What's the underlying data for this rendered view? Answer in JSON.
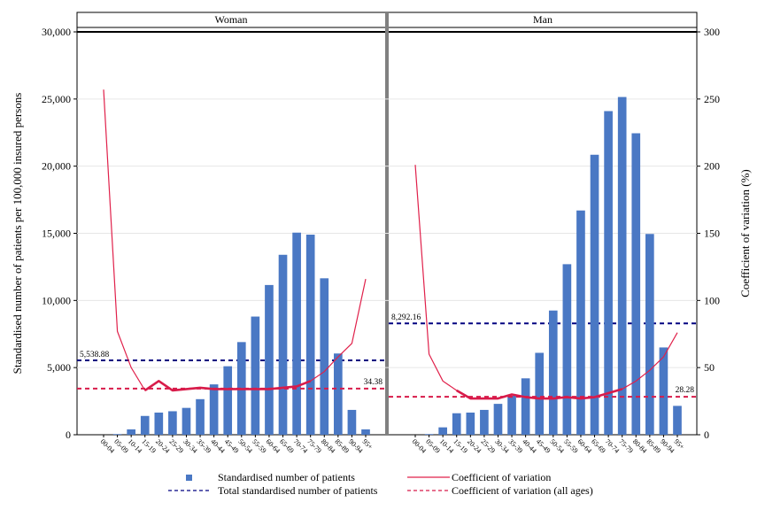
{
  "chart_data": {
    "type": "bar",
    "y_left_label": "Standardised number of patients per 100,000 insured persons",
    "y_right_label": "Coefficient of variation (%)",
    "y_left_range": [
      0,
      30000
    ],
    "y_right_range": [
      0,
      300
    ],
    "y_left_ticks": [
      "0",
      "5,000",
      "10,000",
      "15,000",
      "20,000",
      "25,000",
      "30,000"
    ],
    "y_right_ticks": [
      "0",
      "50",
      "100",
      "150",
      "200",
      "250",
      "300"
    ],
    "categories": [
      "00-04",
      "05-09",
      "10-14",
      "15-19",
      "20-24",
      "25-29",
      "30-34",
      "35-39",
      "40-44",
      "45-49",
      "50-54",
      "55-59",
      "60-64",
      "65-69",
      "70-74",
      "75-79",
      "80-84",
      "85-89",
      "90-94",
      "95+"
    ],
    "panels": [
      {
        "title": "Woman",
        "patients": [
          0,
          50,
          400,
          1400,
          1650,
          1750,
          2000,
          2650,
          3750,
          5100,
          6900,
          8800,
          11150,
          13400,
          15050,
          14900,
          11650,
          6050,
          1850,
          400
        ],
        "cv": [
          257,
          77,
          50,
          33,
          40,
          33,
          34,
          35,
          34,
          34,
          34,
          34,
          34,
          35,
          36,
          40,
          47,
          58,
          68,
          116
        ],
        "total_patients": 5538.88,
        "total_patients_label": "5,538.88",
        "cv_all_ages": 34.38,
        "cv_all_ages_label": "34.38"
      },
      {
        "title": "Man",
        "patients": [
          0,
          50,
          550,
          1600,
          1650,
          1850,
          2300,
          2900,
          4200,
          6100,
          9250,
          12700,
          16700,
          20850,
          24100,
          25150,
          22450,
          14950,
          6500,
          2150
        ],
        "cv": [
          201,
          60,
          40,
          33,
          27,
          27,
          27,
          30,
          28,
          27,
          27,
          28,
          27,
          28,
          31,
          34,
          40,
          48,
          58,
          76
        ],
        "total_patients": 8292.16,
        "total_patients_label": "8,292.16",
        "cv_all_ages": 28.28,
        "cv_all_ages_label": "28.28"
      }
    ],
    "legend": [
      {
        "key": "patients",
        "label": "Standardised number of patients",
        "style": "square"
      },
      {
        "key": "cv",
        "label": "Coefficient of variation",
        "style": "thin-line"
      },
      {
        "key": "total",
        "label": "Total standardised number of patients",
        "style": "navy-dash"
      },
      {
        "key": "cv_all",
        "label": "Coefficient of variation (all ages)",
        "style": "red-dash"
      }
    ],
    "colors": {
      "bar": "#4a78c4",
      "cv_line": "#e0204a",
      "cv_thick": "#d81b4a",
      "total_line": "#000080",
      "cv_all_line": "#d81b4a"
    }
  }
}
